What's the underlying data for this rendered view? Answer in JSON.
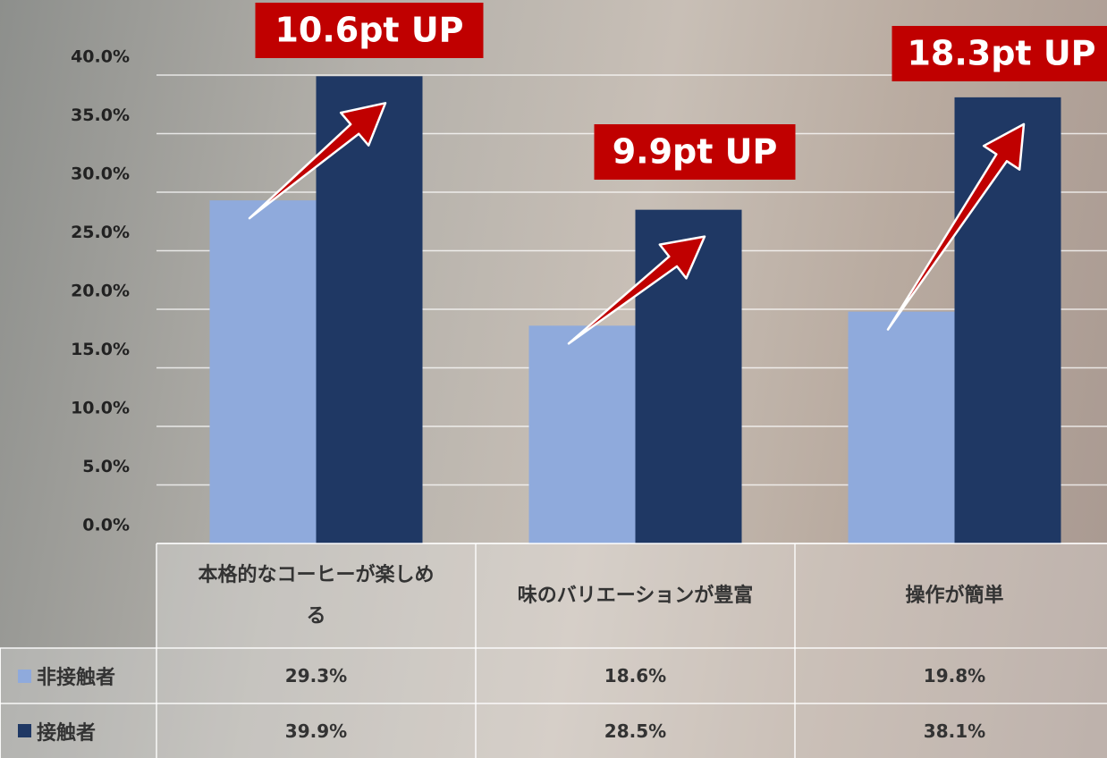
{
  "chart_data": {
    "type": "bar",
    "categories": [
      "本格的なコーヒーが楽しめる",
      "味のバリエーションが豊富",
      "操作が簡単"
    ],
    "series": [
      {
        "name": "非接触者",
        "color": "#8faadc",
        "values": [
          29.3,
          18.6,
          19.8
        ],
        "value_labels": [
          "29.3%",
          "18.6%",
          "19.8%"
        ]
      },
      {
        "name": "接触者",
        "color": "#1f3864",
        "values": [
          39.9,
          28.5,
          38.1
        ],
        "value_labels": [
          "39.9%",
          "28.5%",
          "38.1%"
        ]
      }
    ],
    "annotations": [
      "10.6pt UP",
      "9.9pt UP",
      "18.3pt UP"
    ],
    "ylim": [
      0,
      40
    ],
    "yticks": [
      {
        "value": 0,
        "label": "0.0%"
      },
      {
        "value": 5,
        "label": "5.0%"
      },
      {
        "value": 10,
        "label": "10.0%"
      },
      {
        "value": 15,
        "label": "15.0%"
      },
      {
        "value": 20,
        "label": "20.0%"
      },
      {
        "value": 25,
        "label": "25.0%"
      },
      {
        "value": 30,
        "label": "30.0%"
      },
      {
        "value": 35,
        "label": "35.0%"
      },
      {
        "value": 40,
        "label": "40.0%"
      }
    ],
    "grid": true
  }
}
